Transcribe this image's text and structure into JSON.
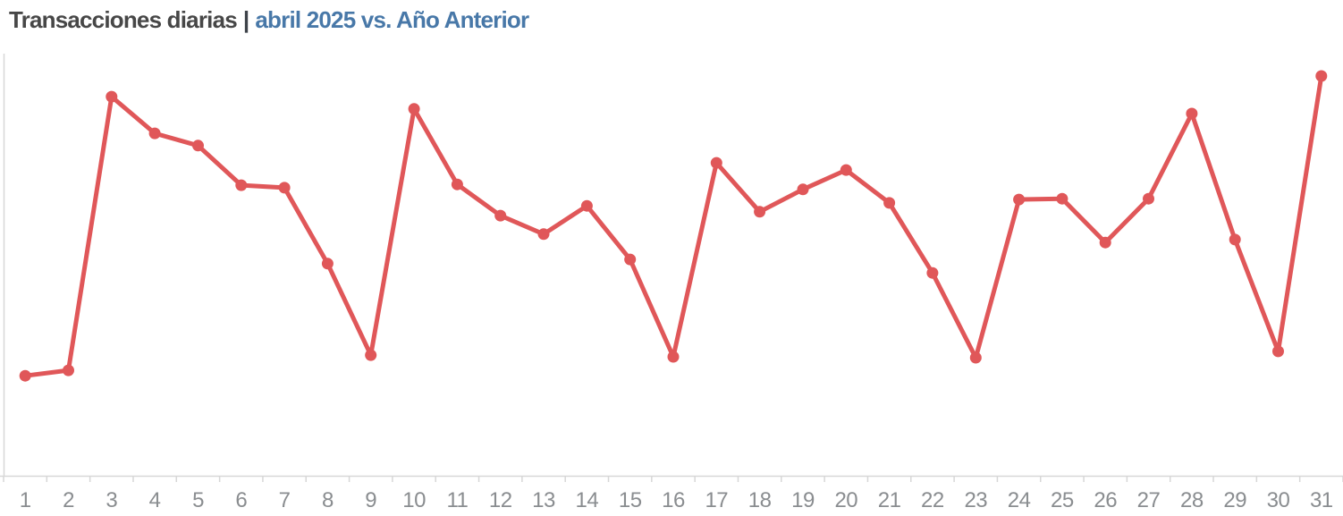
{
  "title": {
    "primary": "Transacciones diarias",
    "separator": "|",
    "secondary": "abril 2025 vs. Año Anterior"
  },
  "colors": {
    "title_primary": "#474747",
    "title_separator": "#3d4249",
    "title_secondary": "#4878a8",
    "line": "#e05759",
    "marker": "#e05759",
    "axis_line": "#d7d7d7",
    "axis_tick": "#d7d7d7",
    "axis_label": "#8a8d90",
    "background": "#ffffff"
  },
  "chart_data": {
    "type": "line",
    "title": "Transacciones diarias | abril 2025 vs. Año Anterior",
    "xlabel": "",
    "ylabel": "",
    "categories": [
      1,
      2,
      3,
      4,
      5,
      6,
      7,
      8,
      9,
      10,
      11,
      12,
      13,
      14,
      15,
      16,
      17,
      18,
      19,
      20,
      21,
      22,
      23,
      24,
      25,
      26,
      27,
      28,
      29,
      30,
      31
    ],
    "series": [
      {
        "name": "Transacciones diarias",
        "values": [
          23.6,
          24.9,
          89.8,
          81.1,
          78.2,
          68.8,
          68.2,
          50.2,
          28.5,
          86.9,
          69.0,
          61.6,
          57.2,
          63.9,
          51.2,
          28.1,
          74.1,
          62.5,
          67.8,
          72.4,
          64.6,
          48.0,
          27.9,
          65.4,
          65.6,
          55.2,
          65.6,
          85.8,
          55.9,
          29.4,
          94.7
        ]
      }
    ],
    "ylim": [
      0,
      100
    ],
    "y_axis_visible": false,
    "y_units": "relative scale (no y-axis labels shown)",
    "grid": false,
    "legend": "none",
    "marker_shape": "circle"
  }
}
